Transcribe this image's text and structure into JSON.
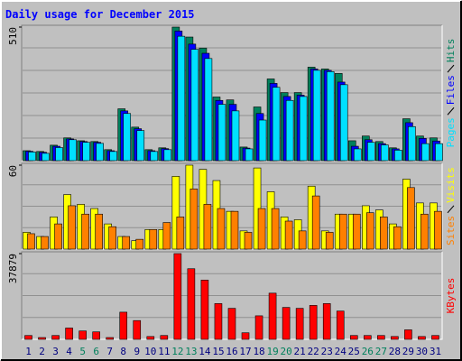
{
  "chart_data": [
    {
      "type": "bar",
      "title": "Daily usage for December 2015",
      "categories": [
        "1",
        "2",
        "3",
        "4",
        "5",
        "6",
        "7",
        "8",
        "9",
        "10",
        "11",
        "12",
        "13",
        "14",
        "15",
        "16",
        "17",
        "18",
        "19",
        "20",
        "21",
        "22",
        "23",
        "24",
        "25",
        "26",
        "27",
        "28",
        "29",
        "30",
        "31"
      ],
      "category_colors": [
        "#000080",
        "#000080",
        "#000080",
        "#000080",
        "#00805c",
        "#00805c",
        "#000080",
        "#000080",
        "#000080",
        "#000080",
        "#000080",
        "#00805c",
        "#00805c",
        "#000080",
        "#000080",
        "#000080",
        "#000080",
        "#000080",
        "#00805c",
        "#00805c",
        "#000080",
        "#000080",
        "#000080",
        "#000080",
        "#000080",
        "#00805c",
        "#00805c",
        "#000080",
        "#000080",
        "#000080",
        "#000080"
      ],
      "ylim": [
        0,
        510
      ],
      "yticks": [
        510
      ],
      "series": [
        {
          "name": "Hits",
          "color": "#00805c",
          "values": [
            38,
            35,
            59,
            87,
            76,
            73,
            42,
            198,
            128,
            42,
            49,
            510,
            472,
            430,
            243,
            232,
            52,
            205,
            312,
            260,
            260,
            357,
            350,
            333,
            76,
            94,
            73,
            49,
            160,
            94,
            87
          ]
        },
        {
          "name": "Files",
          "color": "#0000ff",
          "values": [
            36,
            32,
            55,
            83,
            73,
            70,
            38,
            190,
            122,
            38,
            46,
            495,
            445,
            410,
            230,
            215,
            48,
            180,
            295,
            245,
            250,
            350,
            345,
            300,
            55,
            80,
            65,
            45,
            145,
            85,
            75
          ]
        },
        {
          "name": "Pages",
          "color": "#00e0ff",
          "values": [
            33,
            28,
            50,
            80,
            70,
            66,
            35,
            180,
            115,
            35,
            42,
            475,
            425,
            390,
            215,
            190,
            45,
            155,
            280,
            230,
            245,
            345,
            340,
            290,
            45,
            70,
            60,
            40,
            130,
            65,
            65
          ]
        }
      ]
    },
    {
      "type": "bar",
      "ylim": [
        0,
        60
      ],
      "yticks": [
        60
      ],
      "series": [
        {
          "name": "Visits",
          "color": "#ffff00",
          "values": [
            12,
            9,
            23,
            39,
            32,
            29,
            18,
            9,
            6,
            14,
            14,
            52,
            60,
            57,
            49,
            27,
            13,
            58,
            41,
            23,
            21,
            45,
            13,
            25,
            25,
            31,
            28,
            18,
            50,
            33,
            33
          ]
        },
        {
          "name": "Sites",
          "color": "#ff8000",
          "values": [
            11,
            9,
            18,
            31,
            25,
            25,
            16,
            9,
            7,
            14,
            19,
            23,
            43,
            32,
            29,
            27,
            12,
            29,
            29,
            20,
            13,
            38,
            12,
            25,
            25,
            26,
            23,
            16,
            44,
            25,
            27
          ]
        }
      ]
    },
    {
      "type": "bar",
      "ylim": [
        0,
        37879
      ],
      "yticks": [
        37879
      ],
      "series": [
        {
          "name": "KBytes",
          "color": "#ff0000",
          "values": [
            1700,
            800,
            1700,
            5000,
            3700,
            3300,
            800,
            12000,
            8300,
            1250,
            1700,
            37879,
            31200,
            26200,
            15800,
            13700,
            2900,
            10400,
            20400,
            14100,
            13700,
            15000,
            15800,
            12500,
            1700,
            1700,
            1700,
            1250,
            4200,
            1250,
            1700
          ]
        }
      ]
    }
  ]
}
